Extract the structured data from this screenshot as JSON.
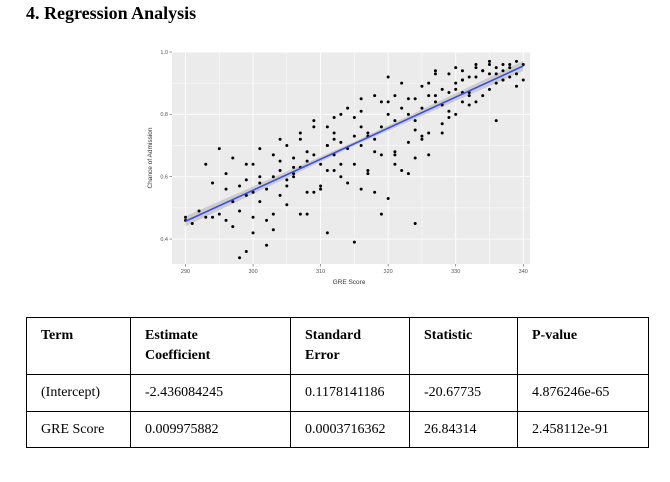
{
  "heading": "4. Regression Analysis",
  "chart_data": {
    "type": "scatter",
    "xlabel": "GRE Score",
    "ylabel": "Chance of Admission",
    "xlim": [
      288,
      341
    ],
    "ylim": [
      0.32,
      1.0
    ],
    "xticks": [
      "290",
      "300",
      "310",
      "320",
      "330",
      "340"
    ],
    "yticks": [
      "0.4",
      "0.6",
      "0.8",
      "1.0"
    ],
    "grid": true,
    "points_x": [
      290,
      290,
      291,
      292,
      293,
      293,
      294,
      294,
      295,
      295,
      296,
      296,
      297,
      297,
      298,
      298,
      299,
      299,
      300,
      300,
      301,
      301,
      302,
      302,
      303,
      303,
      304,
      304,
      305,
      305,
      306,
      306,
      307,
      307,
      308,
      308,
      309,
      309,
      310,
      310,
      311,
      311,
      312,
      312,
      313,
      313,
      314,
      314,
      315,
      315,
      316,
      316,
      317,
      317,
      318,
      318,
      319,
      319,
      320,
      320,
      321,
      321,
      322,
      322,
      323,
      323,
      324,
      324,
      325,
      325,
      326,
      326,
      327,
      327,
      328,
      328,
      329,
      329,
      330,
      330,
      331,
      331,
      332,
      332,
      333,
      333,
      334,
      334,
      335,
      335,
      336,
      336,
      337,
      337,
      338,
      338,
      339,
      339,
      340,
      340,
      296,
      298,
      300,
      302,
      304,
      306,
      308,
      310,
      312,
      314,
      316,
      318,
      320,
      322,
      324,
      326,
      328,
      330,
      332,
      334,
      336,
      338,
      297,
      299,
      301,
      303,
      305,
      307,
      309,
      311,
      313,
      315,
      317,
      319,
      321,
      323,
      325,
      327,
      329,
      331,
      333,
      335,
      337,
      339,
      299,
      301,
      303,
      305,
      307,
      309,
      311,
      313,
      315,
      317,
      319,
      321,
      323,
      325,
      327,
      329,
      331,
      333,
      335,
      337,
      300,
      304,
      308,
      312,
      316,
      320,
      324,
      328,
      332,
      336,
      311,
      316,
      321,
      326,
      331,
      306,
      312,
      318,
      324,
      330
    ],
    "points_y": [
      0.46,
      0.47,
      0.45,
      0.49,
      0.47,
      0.64,
      0.47,
      0.58,
      0.48,
      0.69,
      0.46,
      0.56,
      0.52,
      0.44,
      0.57,
      0.34,
      0.54,
      0.64,
      0.55,
      0.42,
      0.58,
      0.69,
      0.56,
      0.46,
      0.6,
      0.48,
      0.62,
      0.72,
      0.59,
      0.51,
      0.66,
      0.6,
      0.63,
      0.74,
      0.65,
      0.55,
      0.67,
      0.78,
      0.64,
      0.56,
      0.7,
      0.62,
      0.67,
      0.79,
      0.71,
      0.6,
      0.69,
      0.82,
      0.73,
      0.64,
      0.7,
      0.85,
      0.74,
      0.62,
      0.72,
      0.86,
      0.76,
      0.67,
      0.8,
      0.92,
      0.78,
      0.67,
      0.82,
      0.9,
      0.8,
      0.71,
      0.85,
      0.45,
      0.82,
      0.89,
      0.86,
      0.74,
      0.84,
      0.93,
      0.88,
      0.77,
      0.87,
      0.93,
      0.9,
      0.8,
      0.91,
      0.94,
      0.92,
      0.83,
      0.92,
      0.95,
      0.94,
      0.86,
      0.93,
      0.96,
      0.95,
      0.78,
      0.96,
      0.94,
      0.96,
      0.92,
      0.97,
      0.89,
      0.96,
      0.91,
      0.61,
      0.49,
      0.64,
      0.38,
      0.54,
      0.61,
      0.68,
      0.57,
      0.74,
      0.58,
      0.76,
      0.68,
      0.84,
      0.62,
      0.78,
      0.9,
      0.83,
      0.95,
      0.87,
      0.94,
      0.9,
      0.95,
      0.66,
      0.59,
      0.52,
      0.67,
      0.57,
      0.72,
      0.55,
      0.7,
      0.64,
      0.79,
      0.61,
      0.84,
      0.68,
      0.85,
      0.73,
      0.86,
      0.81,
      0.91,
      0.84,
      0.97,
      0.91,
      0.93,
      0.36,
      0.6,
      0.43,
      0.7,
      0.48,
      0.76,
      0.42,
      0.8,
      0.39,
      0.73,
      0.48,
      0.86,
      0.61,
      0.72,
      0.94,
      0.79,
      0.87,
      0.96,
      0.88,
      0.91,
      0.47,
      0.65,
      0.48,
      0.62,
      0.81,
      0.53,
      0.66,
      0.74,
      0.86,
      0.93,
      0.76,
      0.56,
      0.64,
      0.67,
      0.84,
      0.63,
      0.72,
      0.55,
      0.75,
      0.88
    ],
    "regression_line": {
      "x": [
        290,
        340
      ],
      "y": [
        0.457,
        0.955
      ],
      "color": "#3b4fe0"
    },
    "panel_color": "#ebebeb",
    "grid_color": "#ffffff"
  },
  "table": {
    "headers": [
      [
        "Term",
        ""
      ],
      [
        "Estimate",
        "Coefficient"
      ],
      [
        "Standard",
        "Error"
      ],
      [
        "Statistic",
        ""
      ],
      [
        "P-value",
        ""
      ]
    ],
    "rows": [
      [
        "(Intercept)",
        "-2.436084245",
        "0.1178141186",
        "-20.67735",
        "4.876246e-65"
      ],
      [
        "GRE Score",
        "0.009975882",
        "0.0003716362",
        "26.84314",
        "2.458112e-91"
      ]
    ]
  }
}
